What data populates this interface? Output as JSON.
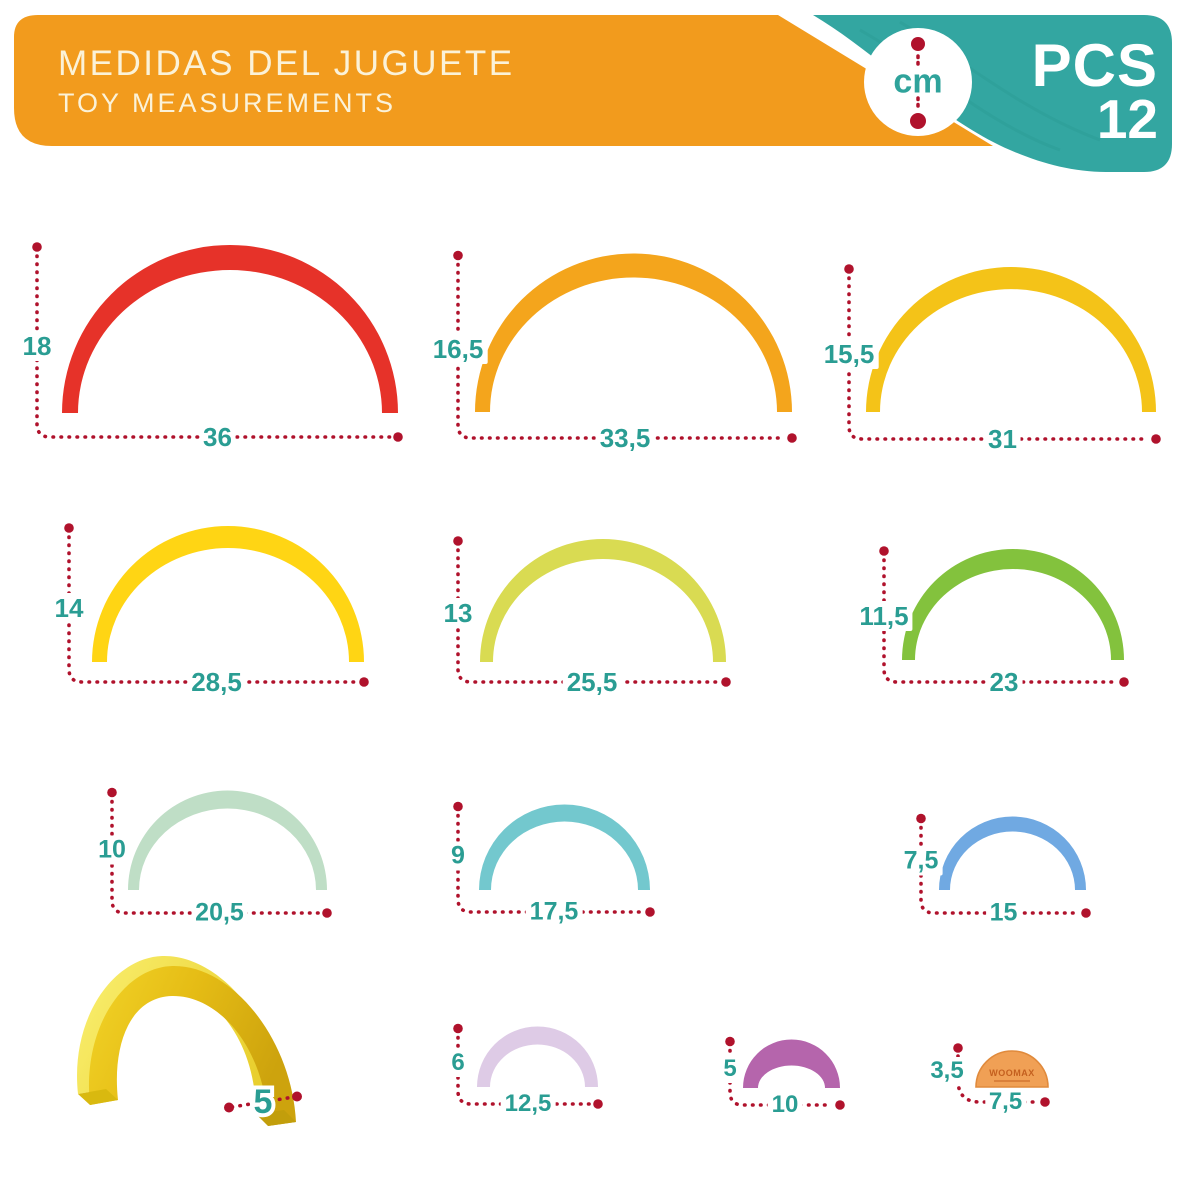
{
  "header": {
    "title_line1": "MEDIDAS DEL JUGUETE",
    "title_line2": "TOY MEASUREMENTS",
    "unit_badge": "cm",
    "pcs_label": "PCS",
    "pcs_count": "12"
  },
  "brand": "WOOMAX",
  "colors": {
    "band_orange": "#F29B1D",
    "panel_teal": "#33A6A1",
    "cream_text": "#FBF2D8",
    "dim_red": "#B0122C",
    "label_teal": "#2A9D93",
    "disc_rim": "#E08A3C",
    "brand_text": "#C4601F"
  },
  "depth_view": {
    "depth_cm": "5"
  },
  "pieces": [
    {
      "name": "red-arch",
      "color": "#E63229",
      "height_cm": "18",
      "width_cm": "36"
    },
    {
      "name": "orange-arch",
      "color": "#F4A51C",
      "height_cm": "16,5",
      "width_cm": "33,5"
    },
    {
      "name": "gold-arch",
      "color": "#F4C318",
      "height_cm": "15,5",
      "width_cm": "31"
    },
    {
      "name": "yellow-arch",
      "color": "#FFD514",
      "height_cm": "14",
      "width_cm": "28,5"
    },
    {
      "name": "chartreuse-arch",
      "color": "#D9DB52",
      "height_cm": "13",
      "width_cm": "25,5"
    },
    {
      "name": "green-arch",
      "color": "#83C23D",
      "height_cm": "11,5",
      "width_cm": "23"
    },
    {
      "name": "mint-arch",
      "color": "#BFDEC6",
      "height_cm": "10",
      "width_cm": "20,5"
    },
    {
      "name": "cyan-arch",
      "color": "#73C8CE",
      "height_cm": "9",
      "width_cm": "17,5"
    },
    {
      "name": "blue-arch",
      "color": "#70A9E2",
      "height_cm": "7,5",
      "width_cm": "15"
    },
    {
      "name": "lavender-arch",
      "color": "#DECBE6",
      "height_cm": "6",
      "width_cm": "12,5"
    },
    {
      "name": "purple-arch",
      "color": "#B565AC",
      "height_cm": "5",
      "width_cm": "10"
    },
    {
      "name": "orange-half-disc",
      "color": "#F0A055",
      "height_cm": "3,5",
      "width_cm": "7,5"
    }
  ]
}
